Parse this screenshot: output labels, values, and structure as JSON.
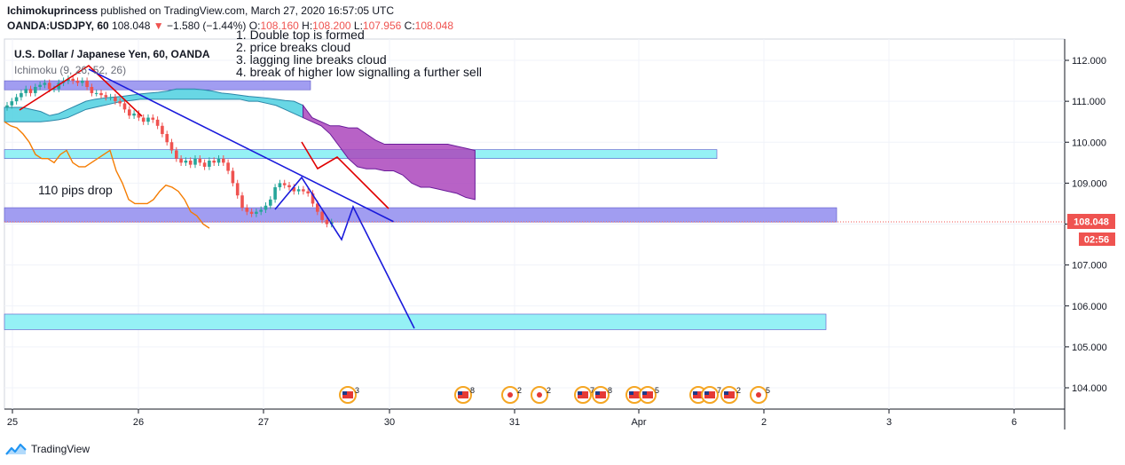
{
  "header": {
    "author": "Ichimokuprincess",
    "published": "published on TradingView.com, March 27, 2020 16:57:05 UTC",
    "symbol": "OANDA:USDJPY, 60",
    "last": "108.048",
    "change": "−1.580 (−1.44%)",
    "o_label": "O:",
    "o": "108.160",
    "h_label": "H:",
    "h": "108.200",
    "l_label": "L:",
    "l": "107.956",
    "c_label": "C:",
    "c": "108.048"
  },
  "legend": {
    "title": "U.S. Dollar / Japanese Yen, 60, OANDA",
    "indicator": "Ichimoku (9, 26, 52, 26)"
  },
  "footer": {
    "brand": "TradingView"
  },
  "chart_data": {
    "type": "candlestick",
    "title": "U.S. Dollar / Japanese Yen, 60, OANDA",
    "yaxis": {
      "ticks": [
        112.0,
        111.0,
        110.0,
        109.0,
        108.0,
        107.0,
        106.0,
        105.0,
        104.0
      ],
      "ylim": [
        103.6,
        112.6
      ]
    },
    "xaxis": {
      "ticks": [
        "25",
        "26",
        "27",
        "30",
        "31",
        "Apr",
        "2",
        "3",
        "6"
      ]
    },
    "last_price": 108.048,
    "last_price_label": "108.048",
    "countdown_label": "02:56",
    "colors": {
      "up": "#26a69a",
      "down": "#ef5350",
      "cloud_bull": "#4dd0e1",
      "cloud_bear": "#ab47bc",
      "lagging": "#f57c00",
      "trend": "#1a1adb",
      "zigzag": "#e00000"
    },
    "candles_close": [
      110.9,
      111.0,
      111.1,
      111.2,
      111.3,
      111.2,
      111.35,
      111.4,
      111.45,
      111.3,
      111.3,
      111.45,
      111.5,
      111.55,
      111.5,
      111.45,
      111.5,
      111.35,
      111.2,
      111.2,
      111.15,
      111.1,
      111.1,
      111.0,
      110.95,
      110.8,
      110.65,
      110.7,
      110.6,
      110.5,
      110.6,
      110.55,
      110.4,
      110.2,
      110.0,
      109.8,
      109.6,
      109.5,
      109.55,
      109.45,
      109.6,
      109.5,
      109.4,
      109.55,
      109.5,
      109.6,
      109.5,
      109.3,
      109.0,
      108.7,
      108.4,
      108.3,
      108.25,
      108.3,
      108.35,
      108.45,
      108.6,
      108.9,
      109.0,
      108.95,
      108.9,
      108.8,
      108.85,
      108.8,
      108.75,
      108.5,
      108.3,
      108.1,
      108.0,
      108.05
    ],
    "cloud_upper": [
      110.85,
      110.85,
      110.85,
      110.8,
      110.75,
      110.65,
      110.7,
      110.8,
      110.9,
      111.0,
      111.05,
      111.08,
      111.1,
      111.12,
      111.15,
      111.18,
      111.2,
      111.22,
      111.25,
      111.3,
      111.3,
      111.3,
      111.28,
      111.25,
      111.2,
      111.18,
      111.15,
      111.12,
      111.1,
      111.08,
      111.05,
      111.02,
      111.0,
      110.9,
      110.6,
      110.5,
      110.4,
      110.4,
      110.35,
      110.35,
      110.2,
      110.05,
      109.95,
      109.95,
      109.95,
      109.95,
      109.95,
      109.95,
      109.95,
      109.95,
      109.9,
      109.85,
      109.8
    ],
    "cloud_lower": [
      110.5,
      110.5,
      110.5,
      110.5,
      110.5,
      110.52,
      110.55,
      110.6,
      110.7,
      110.8,
      110.85,
      110.9,
      110.95,
      111.0,
      111.02,
      111.05,
      111.05,
      111.05,
      111.05,
      111.05,
      111.05,
      111.05,
      111.05,
      111.05,
      111.05,
      111.05,
      111.05,
      111.0,
      111.0,
      110.95,
      110.9,
      110.8,
      110.7,
      110.6,
      110.5,
      110.4,
      110.2,
      109.9,
      109.6,
      109.4,
      109.35,
      109.35,
      109.3,
      109.3,
      109.2,
      109.0,
      108.9,
      108.9,
      108.85,
      108.8,
      108.75,
      108.65,
      108.6
    ],
    "lagging_line": [
      110.5,
      110.4,
      110.35,
      110.2,
      110.0,
      109.7,
      109.6,
      109.6,
      109.5,
      109.7,
      109.8,
      109.5,
      109.4,
      109.4,
      109.5,
      109.6,
      109.7,
      109.8,
      109.3,
      109.0,
      108.6,
      108.5,
      108.5,
      108.5,
      108.6,
      108.8,
      108.95,
      108.9,
      108.8,
      108.6,
      108.3,
      108.2,
      108.0,
      107.9
    ],
    "zones": [
      {
        "name": "resistance-zone",
        "price_top": 111.5,
        "price_bottom": 111.28,
        "color": "#9c98f0"
      },
      {
        "name": "mid-zone",
        "price_top": 109.82,
        "price_bottom": 109.6,
        "color": "#8ff0f4"
      },
      {
        "name": "support-zone",
        "price_top": 108.4,
        "price_bottom": 108.05,
        "color": "#9c98f0"
      },
      {
        "name": "target-zone",
        "price_top": 105.8,
        "price_bottom": 105.42,
        "color": "#8ff0f4"
      }
    ],
    "annotations": [
      "1. Double top is formed",
      "2. price breaks cloud",
      "3. lagging line breaks cloud",
      "4. break of higher low signalling a further sell",
      "110 pips drop"
    ],
    "events": [
      "3",
      "8",
      "2",
      "2",
      "7",
      "8",
      "11",
      "5",
      "3",
      "7",
      "2",
      "5"
    ]
  }
}
